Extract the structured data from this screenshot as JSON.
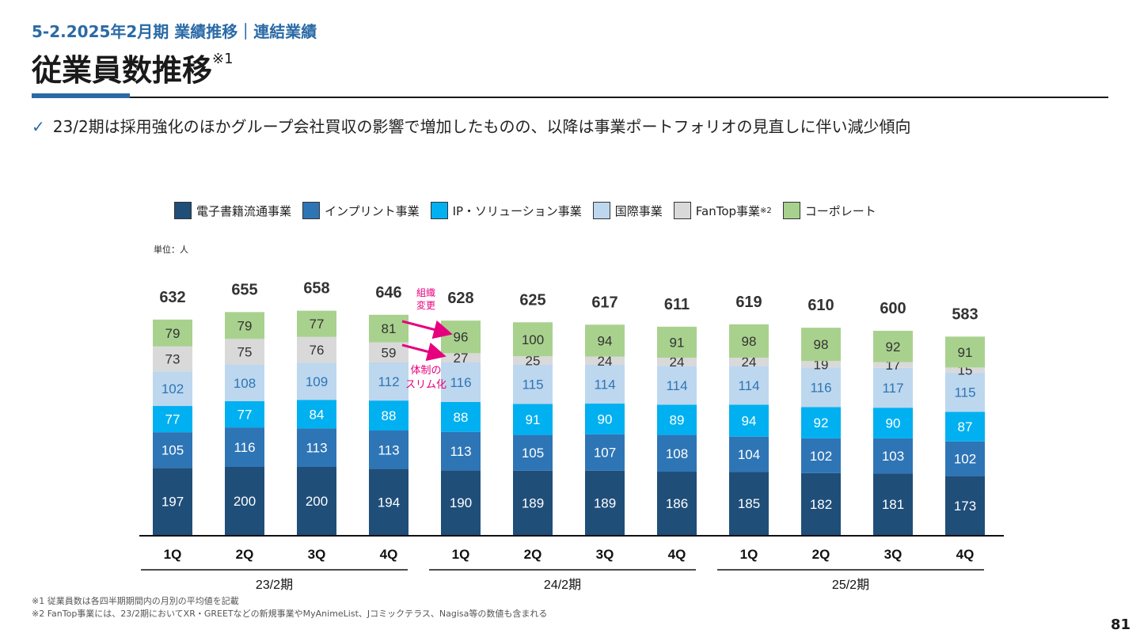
{
  "header": {
    "section": "5-2.2025年2月期 業績推移｜連結業績",
    "title": "従業員数推移",
    "title_note": "※1",
    "bullet": "23/2期は採用強化のほかグループ会社買収の影響で増加したものの、以降は事業ポートフォリオの見直しに伴い減少傾向"
  },
  "legend": {
    "items": [
      {
        "label": "電子書籍流通事業",
        "color": "#1f4e79",
        "note": ""
      },
      {
        "label": "インプリント事業",
        "color": "#2e75b6",
        "note": ""
      },
      {
        "label": "IP・ソリューション事業",
        "color": "#00b0f0",
        "note": ""
      },
      {
        "label": "国際事業",
        "color": "#bdd7ee",
        "note": ""
      },
      {
        "label": "FanTop事業",
        "color": "#d9d9d9",
        "note": "※2"
      },
      {
        "label": "コーポレート",
        "color": "#a9d18e",
        "note": ""
      }
    ]
  },
  "unit_label": "単位：人",
  "annotations": {
    "reorg": "組織変更",
    "slim": "体制のスリム化"
  },
  "chart_data": {
    "type": "bar",
    "stacked": true,
    "categories": [
      "1Q",
      "2Q",
      "3Q",
      "4Q",
      "1Q",
      "2Q",
      "3Q",
      "4Q",
      "1Q",
      "2Q",
      "3Q",
      "4Q"
    ],
    "groups": [
      {
        "label": "23/2期",
        "from": 0,
        "to": 3
      },
      {
        "label": "24/2期",
        "from": 4,
        "to": 7
      },
      {
        "label": "25/2期",
        "from": 8,
        "to": 11
      }
    ],
    "series": [
      {
        "name": "電子書籍流通事業",
        "color": "#1f4e79",
        "text_color": "#ffffff",
        "values": [
          197,
          200,
          200,
          194,
          190,
          189,
          189,
          186,
          185,
          182,
          181,
          173
        ]
      },
      {
        "name": "インプリント事業",
        "color": "#2e75b6",
        "text_color": "#ffffff",
        "values": [
          105,
          116,
          113,
          113,
          113,
          105,
          107,
          108,
          104,
          102,
          103,
          102
        ]
      },
      {
        "name": "IP・ソリューション事業",
        "color": "#00b0f0",
        "text_color": "#ffffff",
        "values": [
          77,
          77,
          84,
          88,
          88,
          91,
          90,
          89,
          94,
          92,
          90,
          87
        ]
      },
      {
        "name": "国際事業",
        "color": "#bdd7ee",
        "text_color": "#2e75b6",
        "values": [
          102,
          108,
          109,
          112,
          116,
          115,
          114,
          114,
          114,
          116,
          117,
          115
        ]
      },
      {
        "name": "FanTop事業",
        "color": "#d9d9d9",
        "text_color": "#333333",
        "values": [
          73,
          75,
          76,
          59,
          27,
          25,
          24,
          24,
          24,
          19,
          17,
          15
        ]
      },
      {
        "name": "コーポレート",
        "color": "#a9d18e",
        "text_color": "#333333",
        "values": [
          79,
          79,
          77,
          81,
          96,
          100,
          94,
          91,
          98,
          98,
          92,
          91
        ]
      }
    ],
    "totals": [
      632,
      655,
      658,
      646,
      628,
      625,
      617,
      611,
      619,
      610,
      600,
      583
    ],
    "ylim": [
      0,
      700
    ],
    "xlabel": "",
    "ylabel": ""
  },
  "footnotes": [
    "※1 従業員数は各四半期期間内の月別の平均値を記載",
    "※2 FanTop事業には、23/2期においてXR・GREETなどの新規事業やMyAnimeList、Jコミックテラス、Nagisa等の数値も含まれる"
  ],
  "page_number": "81"
}
